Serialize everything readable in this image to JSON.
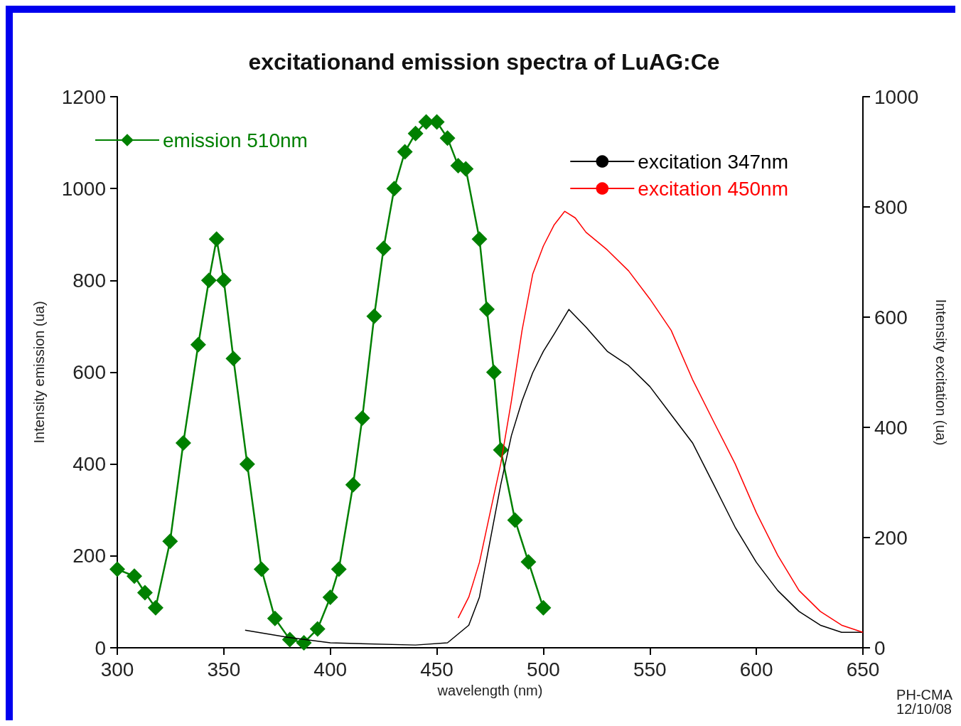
{
  "chart_data": {
    "type": "line",
    "title": "excitationand emission spectra of LuAG:Ce",
    "xlabel": "wavelength (nm)",
    "ylabel": "Intensity emission (ua)",
    "y2label": "Intensity excitation (ua)",
    "xlim": [
      300,
      650
    ],
    "xticks": [
      300,
      350,
      400,
      450,
      500,
      550,
      600,
      650
    ],
    "ylim": [
      0,
      1200
    ],
    "yticks": [
      0,
      200,
      400,
      600,
      800,
      1000,
      1200
    ],
    "y2lim": [
      0,
      1000
    ],
    "y2ticks": [
      0,
      200,
      400,
      600,
      800,
      1000
    ],
    "grid": false,
    "legend": "top",
    "annotations": [
      "PH-CMA\n12/10/08"
    ],
    "series": [
      {
        "name": "emission 510nm",
        "color": "#008000",
        "marker": "diamond",
        "x": [
          300,
          308,
          313,
          318,
          324.8,
          331,
          338,
          343,
          346.6,
          350,
          354.5,
          361,
          367.7,
          374,
          381,
          387.6,
          394,
          400,
          404,
          410.7,
          415,
          420.6,
          425,
          430,
          435,
          440,
          445,
          450,
          455,
          460,
          463.6,
          470,
          473.5,
          476.8,
          480,
          486.7,
          493,
          500
        ],
        "values": [
          171,
          156,
          120,
          87,
          232,
          446,
          660,
          800,
          890,
          800,
          630,
          400,
          171,
          64,
          18,
          11,
          41,
          110,
          171,
          355,
          500,
          722,
          870,
          1000,
          1080,
          1120,
          1145,
          1145,
          1110,
          1050,
          1043,
          890,
          737,
          600,
          431,
          278,
          187,
          87
        ]
      },
      {
        "name": "excitation 347nm",
        "color": "#000000",
        "marker": "none",
        "axis": "y2",
        "x": [
          360,
          380,
          400,
          440,
          455,
          465,
          470,
          475,
          480,
          485,
          490,
          495,
          500,
          505,
          510,
          512,
          520,
          530,
          540,
          550,
          560,
          570,
          580,
          590,
          600,
          610,
          620,
          630,
          640,
          650
        ],
        "values": [
          32,
          19,
          9,
          5,
          9,
          41,
          92,
          194,
          296,
          385,
          448,
          499,
          538,
          569,
          601,
          614,
          582,
          538,
          512,
          474,
          423,
          372,
          296,
          219,
          155,
          104,
          66,
          41,
          28,
          28
        ]
      },
      {
        "name": "excitation 450nm",
        "color": "#ff0000",
        "marker": "none",
        "axis": "y2",
        "x": [
          460,
          465,
          470,
          475,
          480,
          485,
          490,
          495,
          500,
          505,
          510,
          515,
          520,
          530,
          540,
          550,
          560,
          570,
          580,
          590,
          600,
          610,
          620,
          630,
          640,
          650
        ],
        "values": [
          54,
          92,
          155,
          245,
          334,
          448,
          576,
          678,
          729,
          767,
          792,
          780,
          754,
          722,
          684,
          633,
          576,
          487,
          410,
          334,
          245,
          168,
          104,
          66,
          41,
          28
        ]
      }
    ]
  }
}
